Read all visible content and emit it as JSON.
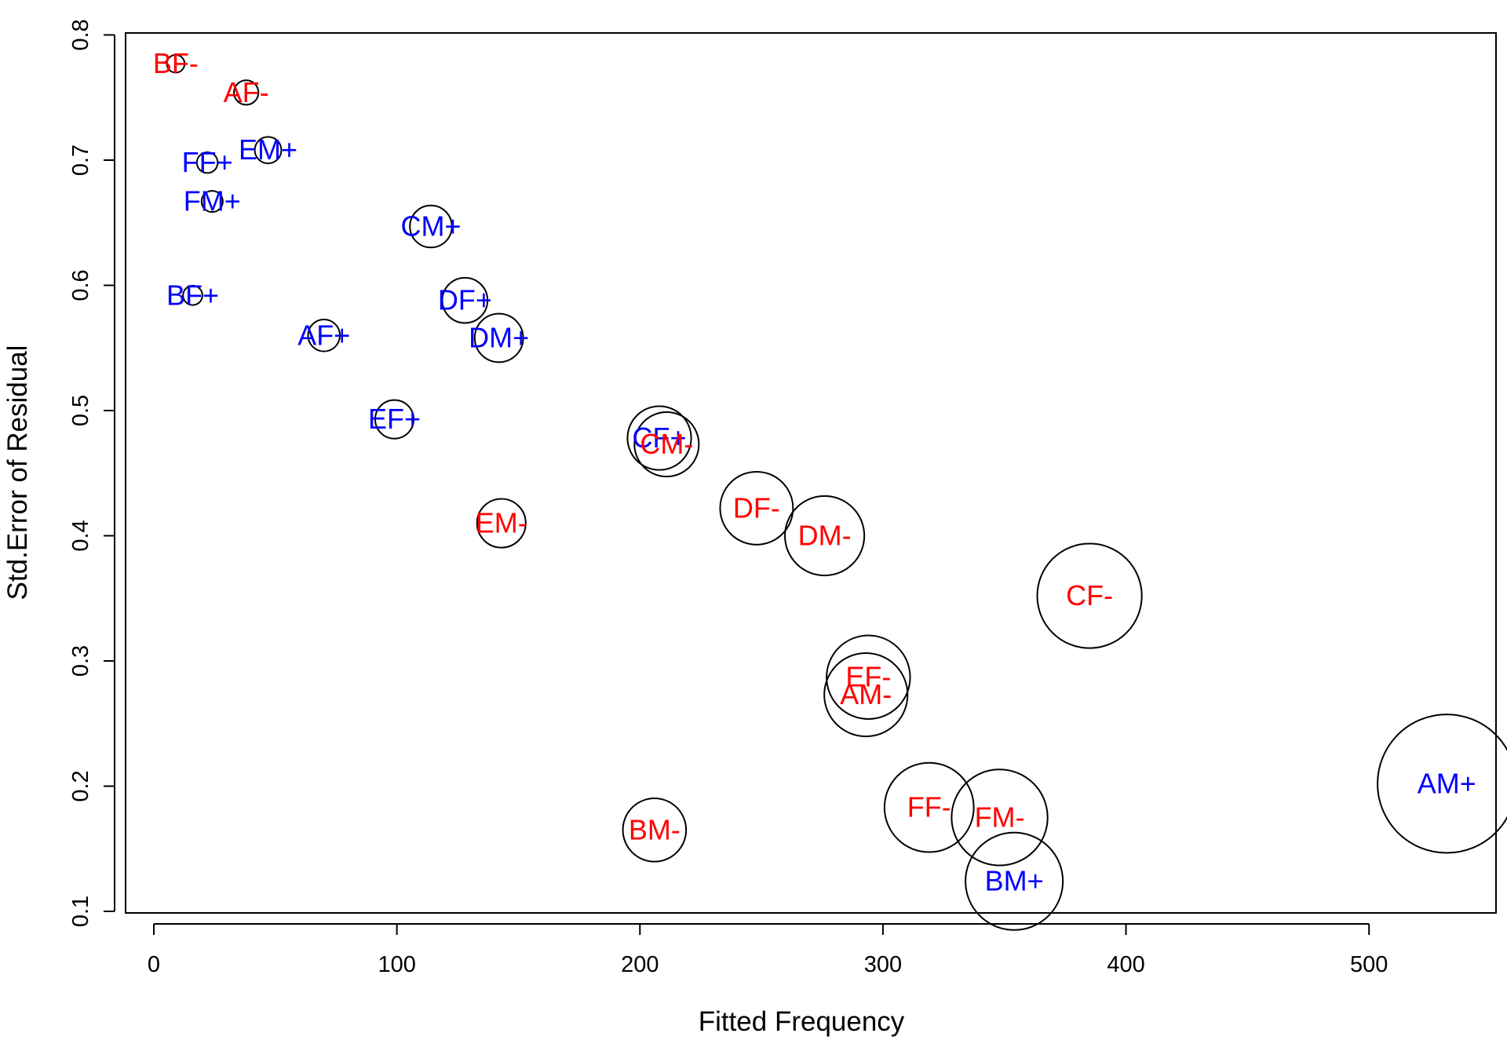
{
  "chart_data": {
    "type": "scatter",
    "title": "",
    "xlabel": "Fitted Frequency",
    "ylabel": "Std.Error of Residual",
    "xlim": [
      -10,
      550
    ],
    "ylim": [
      0.1,
      0.8
    ],
    "xticks": [
      0,
      100,
      200,
      300,
      400,
      500
    ],
    "yticks": [
      0.1,
      0.2,
      0.3,
      0.4,
      0.5,
      0.6,
      0.7,
      0.8
    ],
    "xtick_labels": [
      "0",
      "100",
      "200",
      "300",
      "400",
      "500"
    ],
    "ytick_labels": [
      "0.1",
      "0.2",
      "0.3",
      "0.4",
      "0.5",
      "0.6",
      "0.7",
      "0.8"
    ],
    "grid": false,
    "marker": "circle, size proportional to fitted frequency",
    "colors": {
      "positive": "#0000ff",
      "negative": "#ff0000",
      "outline": "#000000"
    },
    "points": [
      {
        "label": "BF-",
        "x": 9,
        "y": 0.777,
        "sign": "negative"
      },
      {
        "label": "AF-",
        "x": 38,
        "y": 0.754,
        "sign": "negative"
      },
      {
        "label": "EM+",
        "x": 47,
        "y": 0.708,
        "sign": "positive"
      },
      {
        "label": "FF+",
        "x": 22,
        "y": 0.698,
        "sign": "positive"
      },
      {
        "label": "FM+",
        "x": 24,
        "y": 0.667,
        "sign": "positive"
      },
      {
        "label": "CM+",
        "x": 114,
        "y": 0.647,
        "sign": "positive"
      },
      {
        "label": "BF+",
        "x": 16,
        "y": 0.592,
        "sign": "positive"
      },
      {
        "label": "DF+",
        "x": 128,
        "y": 0.588,
        "sign": "positive"
      },
      {
        "label": "AF+",
        "x": 70,
        "y": 0.56,
        "sign": "positive"
      },
      {
        "label": "DM+",
        "x": 142,
        "y": 0.558,
        "sign": "positive"
      },
      {
        "label": "EF+",
        "x": 99,
        "y": 0.493,
        "sign": "positive"
      },
      {
        "label": "CF+",
        "x": 208,
        "y": 0.478,
        "sign": "positive"
      },
      {
        "label": "CM-",
        "x": 211,
        "y": 0.473,
        "sign": "negative"
      },
      {
        "label": "EM-",
        "x": 143,
        "y": 0.41,
        "sign": "negative"
      },
      {
        "label": "DF-",
        "x": 248,
        "y": 0.422,
        "sign": "negative"
      },
      {
        "label": "DM-",
        "x": 276,
        "y": 0.4,
        "sign": "negative"
      },
      {
        "label": "CF-",
        "x": 385,
        "y": 0.352,
        "sign": "negative"
      },
      {
        "label": "EF-",
        "x": 294,
        "y": 0.287,
        "sign": "negative"
      },
      {
        "label": "AM-",
        "x": 293,
        "y": 0.273,
        "sign": "negative"
      },
      {
        "label": "AM+",
        "x": 532,
        "y": 0.202,
        "sign": "positive"
      },
      {
        "label": "FF-",
        "x": 319,
        "y": 0.183,
        "sign": "negative"
      },
      {
        "label": "FM-",
        "x": 348,
        "y": 0.175,
        "sign": "negative"
      },
      {
        "label": "BM-",
        "x": 206,
        "y": 0.165,
        "sign": "negative"
      },
      {
        "label": "BM+",
        "x": 354,
        "y": 0.124,
        "sign": "positive"
      }
    ]
  }
}
